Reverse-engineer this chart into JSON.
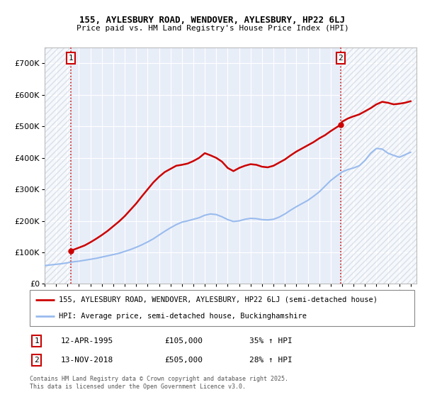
{
  "title_line1": "155, AYLESBURY ROAD, WENDOVER, AYLESBURY, HP22 6LJ",
  "title_line2": "Price paid vs. HM Land Registry's House Price Index (HPI)",
  "legend_label1": "155, AYLESBURY ROAD, WENDOVER, AYLESBURY, HP22 6LJ (semi-detached house)",
  "legend_label2": "HPI: Average price, semi-detached house, Buckinghamshire",
  "footnote": "Contains HM Land Registry data © Crown copyright and database right 2025.\nThis data is licensed under the Open Government Licence v3.0.",
  "ann1_label": "1",
  "ann1_date": "12-APR-1995",
  "ann1_price": "£105,000",
  "ann1_hpi": "35% ↑ HPI",
  "ann1_x": 1995.27,
  "ann1_y": 105000,
  "ann2_label": "2",
  "ann2_date": "13-NOV-2018",
  "ann2_price": "£505,000",
  "ann2_hpi": "28% ↑ HPI",
  "ann2_x": 2018.86,
  "ann2_y": 505000,
  "line1_color": "#cc0000",
  "line2_color": "#99bbee",
  "dashed_color": "#cc0000",
  "bg_color": "#e8eef8",
  "hatch_color": "#c8d0dc",
  "grid_color": "#ffffff",
  "ylim": [
    0,
    750000
  ],
  "yticks": [
    0,
    100000,
    200000,
    300000,
    400000,
    500000,
    600000,
    700000
  ],
  "xlim": [
    1993.0,
    2025.5
  ],
  "xticks": [
    1993,
    1994,
    1995,
    1996,
    1997,
    1998,
    1999,
    2000,
    2001,
    2002,
    2003,
    2004,
    2005,
    2006,
    2007,
    2008,
    2009,
    2010,
    2011,
    2012,
    2013,
    2014,
    2015,
    2016,
    2017,
    2018,
    2019,
    2020,
    2021,
    2022,
    2023,
    2024,
    2025
  ],
  "hpi_x": [
    1993.0,
    1993.5,
    1994.0,
    1994.5,
    1995.0,
    1995.5,
    1996.0,
    1996.5,
    1997.0,
    1997.5,
    1998.0,
    1998.5,
    1999.0,
    1999.5,
    2000.0,
    2000.5,
    2001.0,
    2001.5,
    2002.0,
    2002.5,
    2003.0,
    2003.5,
    2004.0,
    2004.5,
    2005.0,
    2005.5,
    2006.0,
    2006.5,
    2007.0,
    2007.5,
    2008.0,
    2008.5,
    2009.0,
    2009.5,
    2010.0,
    2010.5,
    2011.0,
    2011.5,
    2012.0,
    2012.5,
    2013.0,
    2013.5,
    2014.0,
    2014.5,
    2015.0,
    2015.5,
    2016.0,
    2016.5,
    2017.0,
    2017.5,
    2018.0,
    2018.5,
    2019.0,
    2019.5,
    2020.0,
    2020.5,
    2021.0,
    2021.5,
    2022.0,
    2022.5,
    2023.0,
    2023.5,
    2024.0,
    2024.5,
    2025.0
  ],
  "hpi_y": [
    58000,
    60000,
    62000,
    64000,
    67000,
    70000,
    72000,
    75000,
    78000,
    81000,
    85000,
    89000,
    93000,
    97000,
    103000,
    109000,
    116000,
    124000,
    133000,
    143000,
    155000,
    167000,
    178000,
    188000,
    196000,
    200000,
    205000,
    210000,
    218000,
    222000,
    220000,
    213000,
    204000,
    198000,
    200000,
    205000,
    208000,
    207000,
    204000,
    203000,
    205000,
    212000,
    222000,
    234000,
    245000,
    255000,
    265000,
    278000,
    292000,
    310000,
    328000,
    342000,
    355000,
    363000,
    368000,
    375000,
    392000,
    415000,
    430000,
    428000,
    415000,
    408000,
    402000,
    410000,
    418000
  ],
  "price_x": [
    1995.27,
    1995.5,
    1996.0,
    1996.5,
    1997.0,
    1997.5,
    1998.0,
    1998.5,
    1999.0,
    1999.5,
    2000.0,
    2000.5,
    2001.0,
    2001.5,
    2002.0,
    2002.5,
    2003.0,
    2003.5,
    2004.0,
    2004.5,
    2005.0,
    2005.5,
    2006.0,
    2006.5,
    2007.0,
    2007.5,
    2008.0,
    2008.5,
    2009.0,
    2009.5,
    2010.0,
    2010.5,
    2011.0,
    2011.5,
    2012.0,
    2012.5,
    2013.0,
    2013.5,
    2014.0,
    2014.5,
    2015.0,
    2015.5,
    2016.0,
    2016.5,
    2017.0,
    2017.5,
    2018.0,
    2018.86,
    2018.9,
    2019.0,
    2019.5,
    2020.0,
    2020.5,
    2021.0,
    2021.5,
    2022.0,
    2022.5,
    2023.0,
    2023.5,
    2024.0,
    2024.5,
    2025.0
  ],
  "price_y": [
    105000,
    108000,
    115000,
    122000,
    132000,
    143000,
    155000,
    168000,
    183000,
    198000,
    215000,
    235000,
    255000,
    278000,
    300000,
    322000,
    340000,
    355000,
    365000,
    375000,
    378000,
    382000,
    390000,
    400000,
    415000,
    408000,
    400000,
    388000,
    368000,
    358000,
    368000,
    375000,
    380000,
    378000,
    372000,
    370000,
    375000,
    385000,
    395000,
    408000,
    420000,
    430000,
    440000,
    450000,
    462000,
    472000,
    485000,
    505000,
    508000,
    515000,
    525000,
    532000,
    538000,
    548000,
    558000,
    570000,
    578000,
    575000,
    570000,
    572000,
    575000,
    580000
  ],
  "figsize": [
    6.0,
    5.6
  ],
  "dpi": 100
}
